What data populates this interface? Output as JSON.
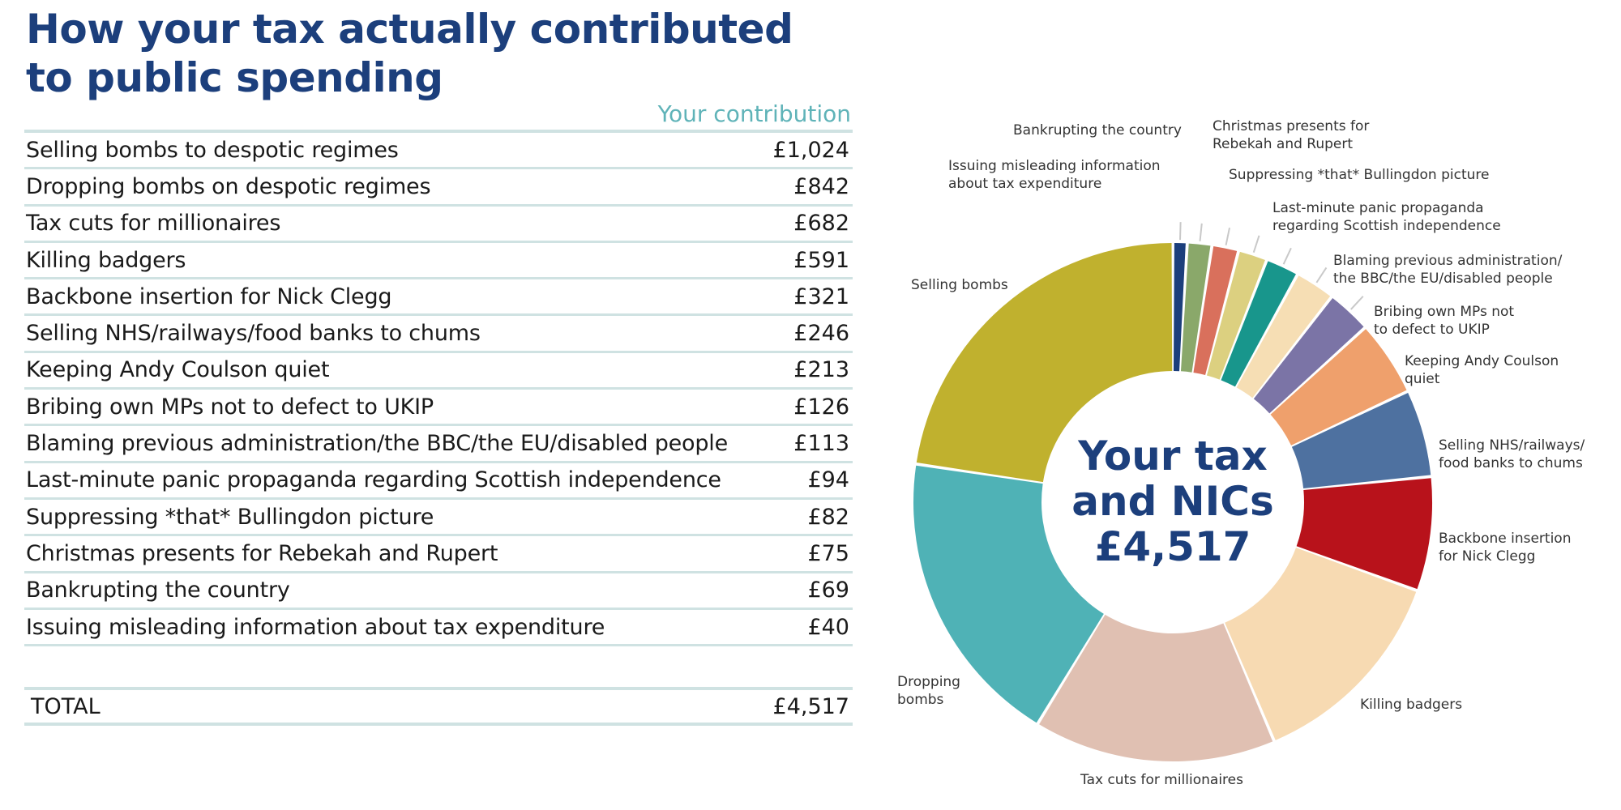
{
  "title": "How your tax actually contributed to public spending",
  "table": {
    "column_header": "Your contribution",
    "rows": [
      {
        "label": "Selling bombs to despotic regimes",
        "value": "£1,024"
      },
      {
        "label": "Dropping bombs on despotic regimes",
        "value": "£842"
      },
      {
        "label": "Tax cuts for millionaires",
        "value": "£682"
      },
      {
        "label": "Killing badgers",
        "value": "£591"
      },
      {
        "label": "Backbone insertion for Nick Clegg",
        "value": "£321"
      },
      {
        "label": "Selling NHS/railways/food banks to chums",
        "value": "£246"
      },
      {
        "label": "Keeping Andy Coulson quiet",
        "value": "£213"
      },
      {
        "label": "Bribing own MPs not to defect to UKIP",
        "value": "£126"
      },
      {
        "label": "Blaming previous administration/the BBC/the EU/disabled people",
        "value": "£113"
      },
      {
        "label": "Last-minute panic propaganda regarding Scottish independence",
        "value": "£94"
      },
      {
        "label": "Suppressing *that* Bullingdon picture",
        "value": "£82"
      },
      {
        "label": "Christmas presents for Rebekah and Rupert",
        "value": "£75"
      },
      {
        "label": "Bankrupting the country",
        "value": "£69"
      },
      {
        "label": "Issuing misleading information about tax expenditure",
        "value": "£40"
      }
    ],
    "total_label": "TOTAL",
    "total_value": "£4,517"
  },
  "chart_data": {
    "type": "pie",
    "donut": true,
    "center_text": [
      "Your tax",
      "and NICs",
      "£4,517"
    ],
    "total": 4517,
    "slices": [
      {
        "label": [
          "Issuing misleading information",
          "about tax expenditure"
        ],
        "value": 40,
        "color": "#1c3f7c"
      },
      {
        "label": [
          "Bankrupting the country"
        ],
        "value": 69,
        "color": "#8aa86a"
      },
      {
        "label": [
          "Christmas presents for",
          "Rebekah and Rupert"
        ],
        "value": 75,
        "color": "#d9705c"
      },
      {
        "label": [
          "Suppressing *that* Bullingdon picture"
        ],
        "value": 82,
        "color": "#dcd080"
      },
      {
        "label": [
          "Last-minute panic propaganda",
          "regarding Scottish independence"
        ],
        "value": 94,
        "color": "#18968c"
      },
      {
        "label": [
          "Blaming previous administration/",
          "the BBC/the EU/disabled people"
        ],
        "value": 113,
        "color": "#f6deb4"
      },
      {
        "label": [
          "Bribing own MPs not",
          "to defect to UKIP"
        ],
        "value": 126,
        "color": "#7b74a6"
      },
      {
        "label": [
          "Keeping Andy Coulson",
          "quiet"
        ],
        "value": 213,
        "color": "#efa06c"
      },
      {
        "label": [
          "Selling NHS/railways/",
          "food banks to chums"
        ],
        "value": 246,
        "color": "#4e71a0"
      },
      {
        "label": [
          "Backbone insertion",
          "for Nick Clegg"
        ],
        "value": 321,
        "color": "#b8121b"
      },
      {
        "label": [
          "Killing badgers"
        ],
        "value": 591,
        "color": "#f7dab2"
      },
      {
        "label": [
          "Tax cuts for millionaires"
        ],
        "value": 682,
        "color": "#e0c0b2"
      },
      {
        "label": [
          "Dropping",
          "bombs"
        ],
        "value": 842,
        "color": "#4fb2b6"
      },
      {
        "label": [
          "Selling bombs"
        ],
        "value": 1024,
        "color": "#c0b12e"
      }
    ]
  }
}
